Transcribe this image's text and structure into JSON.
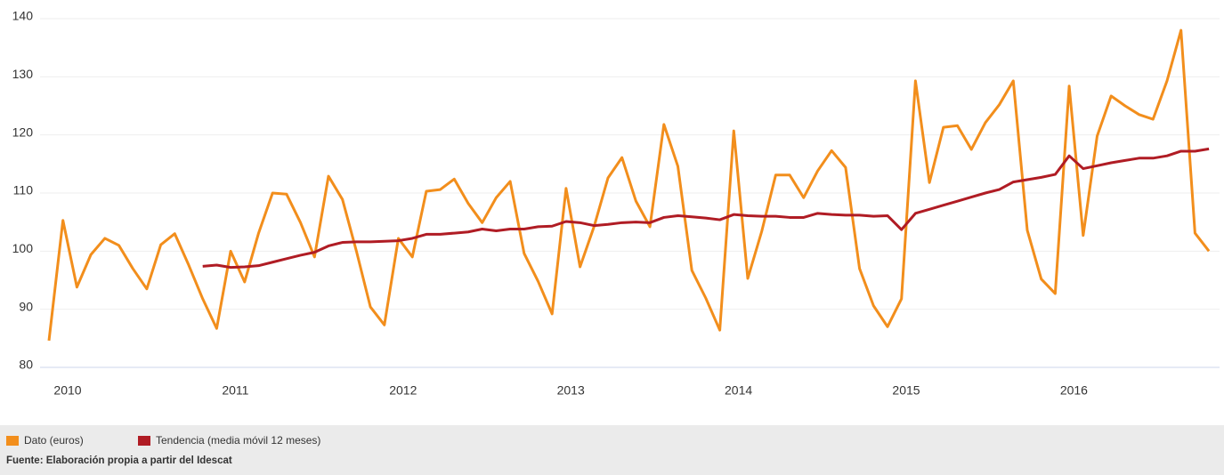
{
  "chart_data": {
    "type": "line",
    "categories": [
      "2010",
      null,
      null,
      null,
      null,
      null,
      null,
      null,
      null,
      null,
      null,
      null,
      "2011",
      null,
      null,
      null,
      null,
      null,
      null,
      null,
      null,
      null,
      null,
      null,
      "2012",
      null,
      null,
      null,
      null,
      null,
      null,
      null,
      null,
      null,
      null,
      null,
      "2013",
      null,
      null,
      null,
      null,
      null,
      null,
      null,
      null,
      null,
      null,
      null,
      "2014",
      null,
      null,
      null,
      null,
      null,
      null,
      null,
      null,
      null,
      null,
      null,
      "2015",
      null,
      null,
      null,
      null,
      null,
      null,
      null,
      null,
      null,
      null,
      null,
      "2016",
      null,
      null,
      null,
      null,
      null,
      null,
      null,
      null,
      null,
      null,
      null
    ],
    "series": [
      {
        "name": "Dato (euros)",
        "color": "#f28e1c",
        "values": [
          84.6,
          105.3,
          93.8,
          99.4,
          102.2,
          101.0,
          97.0,
          93.5,
          101.1,
          103.0,
          97.6,
          91.8,
          86.7,
          100.0,
          94.7,
          103.1,
          110.0,
          109.8,
          104.9,
          99.0,
          112.9,
          108.9,
          100.0,
          90.4,
          87.3,
          102.2,
          99.0,
          110.3,
          110.6,
          112.4,
          108.2,
          104.9,
          109.2,
          112.0,
          99.6,
          94.8,
          89.2,
          110.8,
          97.3,
          104.2,
          112.6,
          116.1,
          108.6,
          104.2,
          121.8,
          114.6,
          96.7,
          91.9,
          86.4,
          120.7,
          95.3,
          103.4,
          113.1,
          113.1,
          109.2,
          113.8,
          117.3,
          114.4,
          97.0,
          90.6,
          87.0,
          91.8,
          129.3,
          111.8,
          121.3,
          121.6,
          117.5,
          122.1,
          125.2,
          129.3,
          103.6,
          95.2,
          92.7,
          128.4,
          102.7,
          119.8,
          126.7,
          125.0,
          123.5,
          122.7,
          129.3,
          138.0,
          103.1,
          100.0
        ]
      },
      {
        "name": "Tendencia (media móvil 12 meses)",
        "color": "#b01c24",
        "values": [
          null,
          null,
          null,
          null,
          null,
          null,
          null,
          null,
          null,
          null,
          null,
          97.4,
          97.6,
          97.2,
          97.3,
          97.5,
          98.1,
          98.7,
          99.3,
          99.8,
          100.9,
          101.5,
          101.6,
          101.6,
          101.7,
          101.8,
          102.2,
          102.9,
          102.9,
          103.1,
          103.3,
          103.8,
          103.5,
          103.8,
          103.8,
          104.2,
          104.3,
          105.1,
          104.9,
          104.4,
          104.6,
          104.9,
          105.0,
          104.9,
          105.8,
          106.1,
          105.9,
          105.7,
          105.4,
          106.3,
          106.1,
          106.0,
          106.0,
          105.8,
          105.8,
          106.5,
          106.3,
          106.2,
          106.2,
          106.0,
          106.1,
          103.7,
          106.5,
          107.2,
          107.9,
          108.6,
          109.3,
          110.0,
          110.6,
          111.9,
          112.3,
          112.7,
          113.2,
          116.4,
          114.2,
          114.7,
          115.2,
          115.6,
          116.0,
          116.0,
          116.4,
          117.2,
          117.2,
          117.6
        ]
      }
    ],
    "ylim": [
      80,
      140
    ],
    "yticks": [
      80,
      90,
      100,
      110,
      120,
      130,
      140
    ],
    "grid": true,
    "source": "Fuente: Elaboración propia a partir del Idescat"
  }
}
